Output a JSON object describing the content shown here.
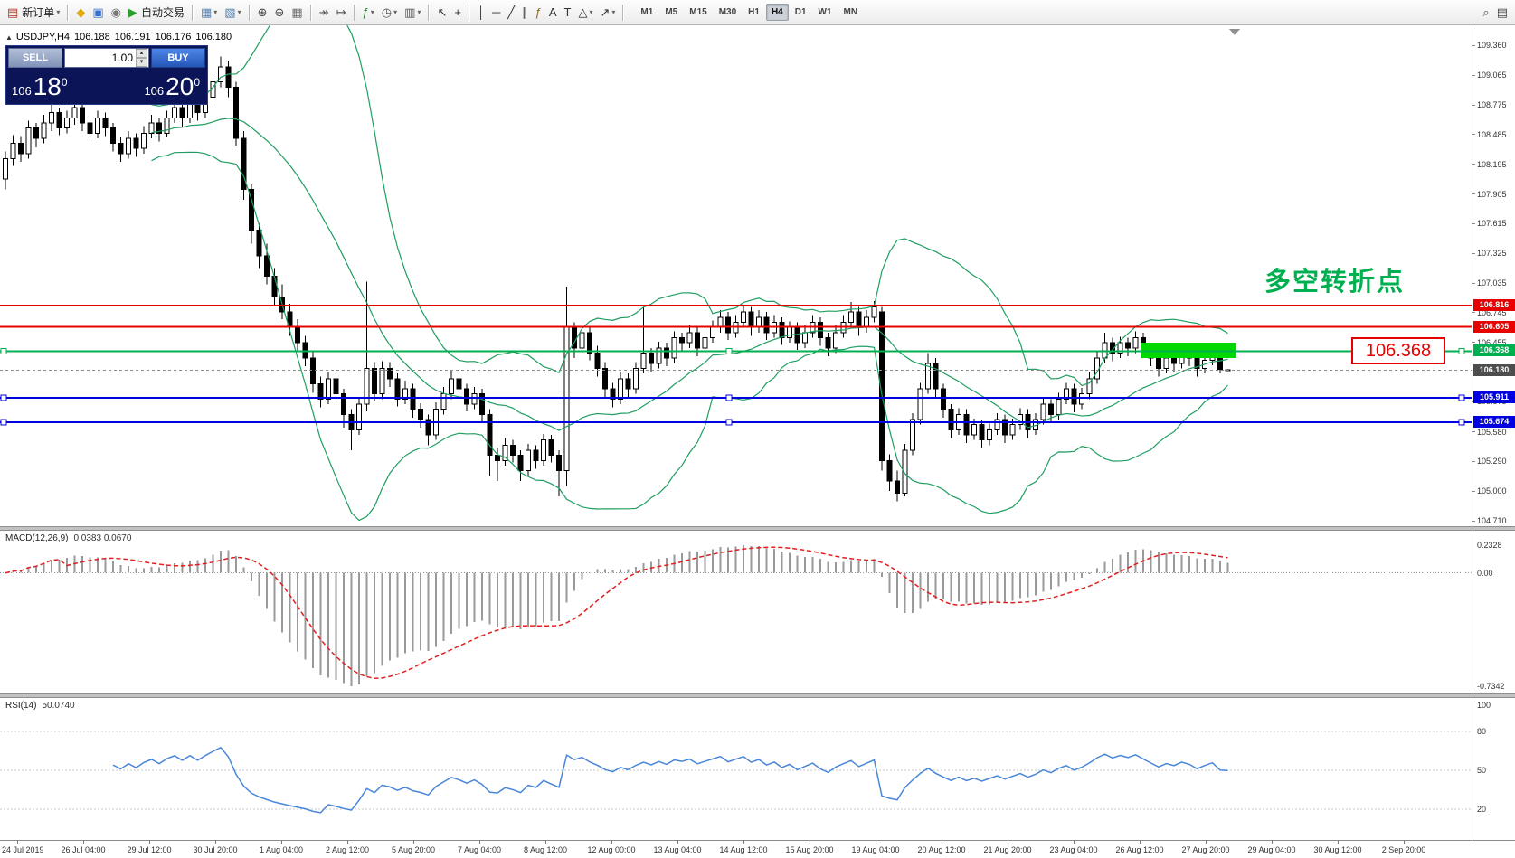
{
  "toolbar": {
    "items": [
      {
        "name": "new-order",
        "glyph": "▤",
        "color": "#b03020",
        "label": "新订单",
        "dropdown": true
      },
      {
        "sep": true
      },
      {
        "name": "metaeditor",
        "glyph": "◆",
        "color": "#e0a912"
      },
      {
        "name": "market-watch",
        "glyph": "▣",
        "color": "#2f6fd0"
      },
      {
        "name": "data-window",
        "glyph": "◉",
        "color": "#777777"
      },
      {
        "name": "autotrading",
        "glyph": "▶",
        "color": "#2aa02a",
        "label": "自动交易"
      },
      {
        "sep": true
      },
      {
        "name": "new-chart",
        "glyph": "▦",
        "color": "#4f7fb0",
        "dropdown": true
      },
      {
        "name": "profiles",
        "glyph": "▧",
        "color": "#4f7fb0",
        "dropdown": true
      },
      {
        "sep": true
      },
      {
        "name": "zoom-in",
        "glyph": "⊕",
        "color": "#444444"
      },
      {
        "name": "zoom-out",
        "glyph": "⊖",
        "color": "#444444"
      },
      {
        "name": "tile-windows",
        "glyph": "▦",
        "color": "#666666"
      },
      {
        "sep": true
      },
      {
        "name": "auto-scroll",
        "glyph": "↠",
        "color": "#555555"
      },
      {
        "name": "chart-shift",
        "glyph": "↦",
        "color": "#555555"
      },
      {
        "sep": true
      },
      {
        "name": "indicators",
        "glyph": "ƒ",
        "color": "#2f7f2f",
        "dropdown": true
      },
      {
        "name": "periods",
        "glyph": "◷",
        "color": "#555555",
        "dropdown": true
      },
      {
        "name": "templates",
        "glyph": "▥",
        "color": "#555555",
        "dropdown": true
      },
      {
        "sep": true
      },
      {
        "name": "cursor",
        "glyph": "↖",
        "color": "#333333"
      },
      {
        "name": "crosshair",
        "glyph": "+",
        "color": "#333333"
      },
      {
        "sep": true
      },
      {
        "name": "vertical-line",
        "glyph": "│",
        "color": "#333333"
      },
      {
        "name": "horizontal-line",
        "glyph": "─",
        "color": "#333333"
      },
      {
        "name": "trendline",
        "glyph": "╱",
        "color": "#333333"
      },
      {
        "name": "equidistant-channel",
        "glyph": "∥",
        "color": "#333333"
      },
      {
        "name": "fibonacci-retracement",
        "glyph": "ƒ",
        "color": "#8a6a2a"
      },
      {
        "name": "text",
        "glyph": "A",
        "color": "#333333"
      },
      {
        "name": "text-label",
        "glyph": "T",
        "color": "#333333"
      },
      {
        "name": "shapes",
        "glyph": "△",
        "color": "#333333",
        "dropdown": true
      },
      {
        "name": "arrows",
        "glyph": "↗",
        "color": "#333333",
        "dropdown": true
      },
      {
        "sep": true
      }
    ],
    "timeframes": [
      "M1",
      "M5",
      "M15",
      "M30",
      "H1",
      "H4",
      "D1",
      "W1",
      "MN"
    ],
    "active_timeframe": "H4",
    "right_items": [
      {
        "name": "search",
        "glyph": "⌕",
        "color": "#444444"
      },
      {
        "name": "chart-window",
        "glyph": "▤",
        "color": "#444444"
      }
    ]
  },
  "chart": {
    "collapse_icon": "▲",
    "symbol_period": "USDJPY,H4",
    "open": "106.188",
    "high": "106.191",
    "low": "106.176",
    "close": "106.180"
  },
  "trade_panel": {
    "sell_label": "SELL",
    "buy_label": "BUY",
    "volume": "1.00",
    "bid": {
      "prefix": "106",
      "big": "18",
      "sup": "0"
    },
    "ask": {
      "prefix": "106",
      "big": "20",
      "sup": "0"
    }
  },
  "macd_panel": {
    "title": "MACD(12,26,9)",
    "values": "0.0383 0.0670"
  },
  "rsi_panel": {
    "title": "RSI(14)",
    "value": "50.0740"
  },
  "chart_data": {
    "type": "candlestick",
    "symbol": "USDJPY",
    "timeframe": "H4",
    "ohlc_current": {
      "open": 106.188,
      "high": 106.191,
      "low": 106.176,
      "close": 106.18
    },
    "price_axis": {
      "max": 109.36,
      "min": 104.71,
      "ticks": [
        "109.360",
        "109.065",
        "108.775",
        "108.485",
        "108.195",
        "107.905",
        "107.615",
        "107.325",
        "107.035",
        "106.745",
        "106.455",
        "106.165",
        "105.875",
        "105.580",
        "105.290",
        "105.000",
        "104.710"
      ]
    },
    "time_axis": [
      "24 Jul 2019",
      "26 Jul 04:00",
      "29 Jul 12:00",
      "30 Jul 20:00",
      "1 Aug 04:00",
      "2 Aug 12:00",
      "5 Aug 20:00",
      "7 Aug 04:00",
      "8 Aug 12:00",
      "12 Aug 00:00",
      "13 Aug 04:00",
      "14 Aug 12:00",
      "15 Aug 20:00",
      "19 Aug 04:00",
      "20 Aug 12:00",
      "21 Aug 20:00",
      "23 Aug 04:00",
      "26 Aug 12:00",
      "27 Aug 20:00",
      "29 Aug 04:00",
      "30 Aug 12:00",
      "2 Sep 20:00"
    ],
    "levels": [
      {
        "price": 106.816,
        "label": "106.816",
        "color": "#e60000",
        "handles": false
      },
      {
        "price": 106.605,
        "label": "106.605",
        "color": "#e60000",
        "handles": false
      },
      {
        "price": 106.368,
        "label": "106.368",
        "color": "#00b050",
        "handles": true
      },
      {
        "price": 105.911,
        "label": "105.911",
        "color": "#0000e0",
        "handles": true
      },
      {
        "price": 105.674,
        "label": "105.674",
        "color": "#0000e0",
        "handles": true
      }
    ],
    "bid_line": {
      "price": 106.18,
      "label": "106.180",
      "color": "#4d4d4d"
    },
    "highlight_rect": {
      "from_candle": 148,
      "price_top": 106.45,
      "price_bottom": 106.3,
      "color": "#00d800"
    },
    "annotation": "多空转折点",
    "annotation_color": "#00b050",
    "callout": "106.368",
    "callout_color": "#e60000",
    "indicators": {
      "bollinger": {
        "period": 20,
        "deviation": 2,
        "color": "#1f9e60"
      },
      "macd": {
        "params": "12,26,9",
        "main": 0.0383,
        "signal": 0.067,
        "scale_max": "0.2328",
        "scale_zero": "0.00",
        "scale_min": "-0.7342",
        "hist_color": "#9a9a9a",
        "signal_color": "#e02020"
      },
      "rsi": {
        "period": 14,
        "value": 50.074,
        "levels": [
          "100",
          "80",
          "50",
          "20"
        ],
        "line_color": "#4a86d8"
      }
    },
    "candles": [
      [
        108.05,
        108.32,
        107.95,
        108.25
      ],
      [
        108.25,
        108.48,
        108.18,
        108.4
      ],
      [
        108.4,
        108.47,
        108.22,
        108.3
      ],
      [
        108.3,
        108.62,
        108.25,
        108.55
      ],
      [
        108.55,
        108.6,
        108.36,
        108.45
      ],
      [
        108.45,
        108.68,
        108.4,
        108.6
      ],
      [
        108.6,
        108.78,
        108.52,
        108.7
      ],
      [
        108.7,
        108.75,
        108.48,
        108.55
      ],
      [
        108.55,
        108.72,
        108.5,
        108.65
      ],
      [
        108.65,
        108.83,
        108.58,
        108.75
      ],
      [
        108.75,
        108.8,
        108.52,
        108.6
      ],
      [
        108.6,
        108.66,
        108.42,
        108.5
      ],
      [
        108.5,
        108.72,
        108.45,
        108.65
      ],
      [
        108.65,
        108.7,
        108.47,
        108.55
      ],
      [
        108.55,
        108.6,
        108.32,
        108.4
      ],
      [
        108.4,
        108.46,
        108.22,
        108.3
      ],
      [
        108.3,
        108.52,
        108.25,
        108.45
      ],
      [
        108.45,
        108.5,
        108.27,
        108.35
      ],
      [
        108.35,
        108.57,
        108.3,
        108.5
      ],
      [
        108.5,
        108.68,
        108.45,
        108.6
      ],
      [
        108.6,
        108.65,
        108.42,
        108.5
      ],
      [
        108.5,
        108.72,
        108.46,
        108.65
      ],
      [
        108.65,
        108.82,
        108.6,
        108.75
      ],
      [
        108.75,
        108.8,
        108.56,
        108.65
      ],
      [
        108.65,
        108.87,
        108.6,
        108.8
      ],
      [
        108.8,
        108.85,
        108.62,
        108.7
      ],
      [
        108.7,
        108.92,
        108.65,
        108.85
      ],
      [
        108.85,
        109.06,
        108.8,
        109.0
      ],
      [
        109.0,
        109.25,
        108.95,
        109.15
      ],
      [
        109.15,
        109.2,
        108.85,
        108.95
      ],
      [
        108.95,
        109.0,
        108.38,
        108.45
      ],
      [
        108.45,
        108.52,
        107.85,
        107.95
      ],
      [
        107.95,
        108.0,
        107.42,
        107.55
      ],
      [
        107.55,
        107.62,
        107.18,
        107.3
      ],
      [
        107.3,
        107.42,
        107.02,
        107.1
      ],
      [
        107.1,
        107.18,
        106.82,
        106.9
      ],
      [
        106.9,
        107.02,
        106.68,
        106.75
      ],
      [
        106.75,
        106.83,
        106.52,
        106.6
      ],
      [
        106.6,
        106.68,
        106.36,
        106.45
      ],
      [
        106.45,
        106.52,
        106.22,
        106.3
      ],
      [
        106.3,
        106.36,
        105.96,
        106.05
      ],
      [
        106.05,
        106.12,
        105.82,
        105.9
      ],
      [
        105.9,
        106.16,
        105.85,
        106.1
      ],
      [
        106.1,
        106.15,
        105.88,
        105.95
      ],
      [
        105.95,
        106.0,
        105.62,
        105.75
      ],
      [
        105.75,
        105.8,
        105.4,
        105.6
      ],
      [
        105.6,
        105.92,
        105.55,
        105.85
      ],
      [
        105.85,
        107.05,
        105.78,
        106.2
      ],
      [
        106.2,
        106.26,
        105.88,
        105.95
      ],
      [
        105.95,
        106.27,
        105.9,
        106.2
      ],
      [
        106.2,
        106.26,
        106.02,
        106.1
      ],
      [
        106.1,
        106.15,
        105.83,
        105.9
      ],
      [
        105.9,
        106.08,
        105.85,
        106.0
      ],
      [
        106.0,
        106.05,
        105.72,
        105.8
      ],
      [
        105.8,
        105.86,
        105.62,
        105.7
      ],
      [
        105.7,
        105.75,
        105.45,
        105.55
      ],
      [
        105.55,
        105.87,
        105.5,
        105.8
      ],
      [
        105.8,
        106.02,
        105.75,
        105.95
      ],
      [
        105.95,
        106.18,
        105.9,
        106.1
      ],
      [
        106.1,
        106.15,
        105.92,
        106.0
      ],
      [
        106.0,
        106.05,
        105.78,
        105.85
      ],
      [
        105.85,
        106.02,
        105.8,
        105.95
      ],
      [
        105.95,
        106.0,
        105.68,
        105.75
      ],
      [
        105.75,
        105.8,
        105.15,
        105.35
      ],
      [
        105.35,
        105.42,
        105.1,
        105.3
      ],
      [
        105.3,
        105.52,
        105.25,
        105.45
      ],
      [
        105.45,
        105.5,
        105.28,
        105.35
      ],
      [
        105.35,
        105.4,
        105.1,
        105.2
      ],
      [
        105.2,
        105.46,
        105.15,
        105.4
      ],
      [
        105.4,
        105.45,
        105.22,
        105.3
      ],
      [
        105.3,
        105.56,
        105.25,
        105.5
      ],
      [
        105.5,
        105.55,
        105.28,
        105.35
      ],
      [
        105.35,
        105.4,
        104.95,
        105.2
      ],
      [
        105.2,
        107.0,
        105.05,
        106.6
      ],
      [
        106.6,
        106.65,
        106.3,
        106.4
      ],
      [
        106.4,
        106.62,
        106.35,
        106.55
      ],
      [
        106.55,
        106.6,
        106.28,
        106.35
      ],
      [
        106.35,
        106.42,
        106.12,
        106.2
      ],
      [
        106.2,
        106.26,
        105.92,
        106.0
      ],
      [
        106.0,
        106.06,
        105.82,
        105.9
      ],
      [
        105.9,
        106.16,
        105.85,
        106.1
      ],
      [
        106.1,
        106.15,
        105.92,
        106.0
      ],
      [
        106.0,
        106.26,
        105.95,
        106.2
      ],
      [
        106.2,
        106.8,
        106.15,
        106.35
      ],
      [
        106.35,
        106.4,
        106.16,
        106.25
      ],
      [
        106.25,
        106.46,
        106.2,
        106.4
      ],
      [
        106.4,
        106.45,
        106.22,
        106.3
      ],
      [
        106.3,
        106.56,
        106.25,
        106.5
      ],
      [
        106.5,
        106.55,
        106.36,
        106.45
      ],
      [
        106.45,
        106.62,
        106.4,
        106.55
      ],
      [
        106.55,
        106.6,
        106.32,
        106.4
      ],
      [
        106.4,
        106.56,
        106.35,
        106.5
      ],
      [
        106.5,
        106.67,
        106.45,
        106.6
      ],
      [
        106.6,
        106.77,
        106.55,
        106.7
      ],
      [
        106.7,
        106.75,
        106.48,
        106.55
      ],
      [
        106.55,
        106.72,
        106.5,
        106.65
      ],
      [
        106.65,
        106.82,
        106.6,
        106.75
      ],
      [
        106.75,
        106.8,
        106.52,
        106.6
      ],
      [
        106.6,
        106.77,
        106.55,
        106.7
      ],
      [
        106.7,
        106.75,
        106.48,
        106.55
      ],
      [
        106.55,
        106.72,
        106.5,
        106.65
      ],
      [
        106.65,
        106.7,
        106.43,
        106.5
      ],
      [
        106.5,
        106.66,
        106.45,
        106.6
      ],
      [
        106.6,
        106.65,
        106.38,
        106.45
      ],
      [
        106.45,
        106.62,
        106.4,
        106.55
      ],
      [
        106.55,
        106.72,
        106.5,
        106.65
      ],
      [
        106.65,
        106.7,
        106.42,
        106.5
      ],
      [
        106.5,
        106.55,
        106.32,
        106.4
      ],
      [
        106.4,
        106.62,
        106.35,
        106.55
      ],
      [
        106.55,
        106.72,
        106.5,
        106.65
      ],
      [
        106.65,
        106.85,
        106.6,
        106.75
      ],
      [
        106.75,
        106.8,
        106.52,
        106.6
      ],
      [
        106.6,
        106.77,
        106.55,
        106.7
      ],
      [
        106.7,
        106.86,
        106.65,
        106.8
      ],
      [
        106.75,
        106.8,
        105.2,
        105.3
      ],
      [
        105.3,
        105.36,
        105.0,
        105.1
      ],
      [
        105.1,
        105.2,
        104.9,
        104.98
      ],
      [
        104.98,
        105.46,
        104.95,
        105.4
      ],
      [
        105.4,
        105.76,
        105.35,
        105.7
      ],
      [
        105.7,
        106.06,
        105.65,
        106.0
      ],
      [
        106.0,
        106.35,
        105.95,
        106.25
      ],
      [
        106.25,
        106.3,
        105.92,
        106.0
      ],
      [
        106.0,
        106.05,
        105.72,
        105.8
      ],
      [
        105.8,
        105.85,
        105.52,
        105.6
      ],
      [
        105.6,
        105.81,
        105.55,
        105.75
      ],
      [
        105.75,
        105.8,
        105.47,
        105.55
      ],
      [
        105.55,
        105.71,
        105.5,
        105.65
      ],
      [
        105.65,
        105.7,
        105.42,
        105.5
      ],
      [
        105.5,
        105.66,
        105.45,
        105.6
      ],
      [
        105.6,
        105.76,
        105.55,
        105.7
      ],
      [
        105.7,
        105.75,
        105.47,
        105.55
      ],
      [
        105.55,
        105.71,
        105.5,
        105.65
      ],
      [
        105.65,
        105.81,
        105.6,
        105.75
      ],
      [
        105.75,
        105.8,
        105.52,
        105.6
      ],
      [
        105.6,
        105.76,
        105.55,
        105.7
      ],
      [
        105.7,
        105.91,
        105.65,
        105.85
      ],
      [
        105.85,
        105.9,
        105.67,
        105.75
      ],
      [
        105.75,
        105.96,
        105.7,
        105.9
      ],
      [
        105.9,
        106.06,
        105.85,
        106.0
      ],
      [
        106.0,
        106.05,
        105.77,
        105.85
      ],
      [
        105.85,
        106.01,
        105.8,
        105.95
      ],
      [
        105.95,
        106.16,
        105.9,
        106.1
      ],
      [
        106.1,
        106.36,
        106.05,
        106.3
      ],
      [
        106.3,
        106.55,
        106.25,
        106.45
      ],
      [
        106.45,
        106.5,
        106.27,
        106.35
      ],
      [
        106.35,
        106.51,
        106.3,
        106.45
      ],
      [
        106.45,
        106.5,
        106.32,
        106.4
      ],
      [
        106.4,
        106.56,
        106.35,
        106.5
      ],
      [
        106.5,
        106.55,
        106.32,
        106.4
      ],
      [
        106.4,
        106.45,
        106.22,
        106.3
      ],
      [
        106.3,
        106.35,
        106.12,
        106.2
      ],
      [
        106.2,
        106.36,
        106.15,
        106.3
      ],
      [
        106.3,
        106.35,
        106.17,
        106.25
      ],
      [
        106.25,
        106.41,
        106.2,
        106.35
      ],
      [
        106.35,
        106.4,
        106.22,
        106.3
      ],
      [
        106.3,
        106.35,
        106.12,
        106.2
      ],
      [
        106.2,
        106.33,
        106.15,
        106.28
      ],
      [
        106.28,
        106.4,
        106.23,
        106.35
      ],
      [
        106.35,
        106.4,
        106.15,
        106.19
      ],
      [
        106.188,
        106.191,
        106.176,
        106.18
      ]
    ]
  }
}
